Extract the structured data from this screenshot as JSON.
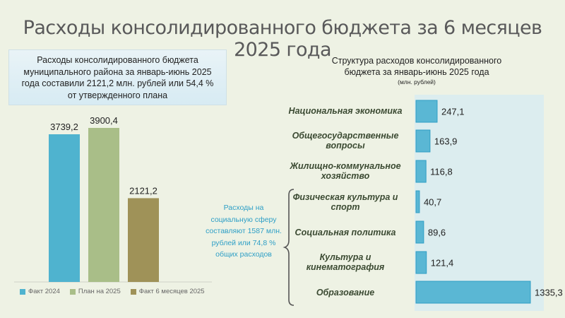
{
  "title": "Расходы консолидированного бюджета за 6 месяцев 2025 года",
  "summary_lines": [
    "Расходы консолидированного бюджета",
    "муниципального района за январь-июнь 2025",
    "года составили 2121,2 млн. рублей или 54,4 %",
    "от утвержденного плана"
  ],
  "right_chart_title_lines": [
    "Структура расходов консолидированного",
    "бюджета за январь-июнь 2025 года"
  ],
  "right_chart_unit": "(млн. рублей)",
  "social_note": "Расходы на социальную сферу составляют 1587 млн. рублей или 74,8 % общих расходов",
  "colors": {
    "fact2024": "#4fb3cf",
    "plan2025": "#a9be88",
    "fact2025": "#9f9258",
    "hbar_fill": "#5ab7d4",
    "hbar_stroke": "#2f9ec4",
    "hbar_bg": "#dcedef",
    "brace": "#555555",
    "note": "#2e9fc6"
  },
  "chart_data": [
    {
      "type": "bar",
      "categories": [
        "Факт 2024",
        "План на 2025",
        "Факт 6 месяцев 2025"
      ],
      "values": [
        3739.2,
        3900.4,
        2121.2
      ],
      "value_labels": [
        "3739,2",
        "3900,4",
        "2121,2"
      ],
      "legend": [
        "Факт 2024",
        "План на 2025",
        "Факт 6 месяцев 2025"
      ],
      "legend_position": "bottom",
      "ylim": [
        0,
        4400
      ],
      "grid": false
    },
    {
      "type": "bar",
      "orientation": "horizontal",
      "title": "Структура расходов консолидированного бюджета за январь-июнь 2025 года",
      "unit": "(млн. рублей)",
      "categories": [
        "Национальная экономика",
        "Общегосударственные вопросы",
        "Жилищно-коммунальное хозяйство",
        "Физическая культура и спорт",
        "Социальная политика",
        "Культура и кинематография",
        "Образование"
      ],
      "values": [
        247.1,
        163.9,
        116.8,
        40.7,
        89.6,
        121.4,
        1335.3
      ],
      "value_labels": [
        "247,1",
        "163,9",
        "116,8",
        "40,7",
        "89,6",
        "121,4",
        "1335,3"
      ],
      "xlim": [
        0,
        1335.3
      ],
      "grid": false
    }
  ]
}
